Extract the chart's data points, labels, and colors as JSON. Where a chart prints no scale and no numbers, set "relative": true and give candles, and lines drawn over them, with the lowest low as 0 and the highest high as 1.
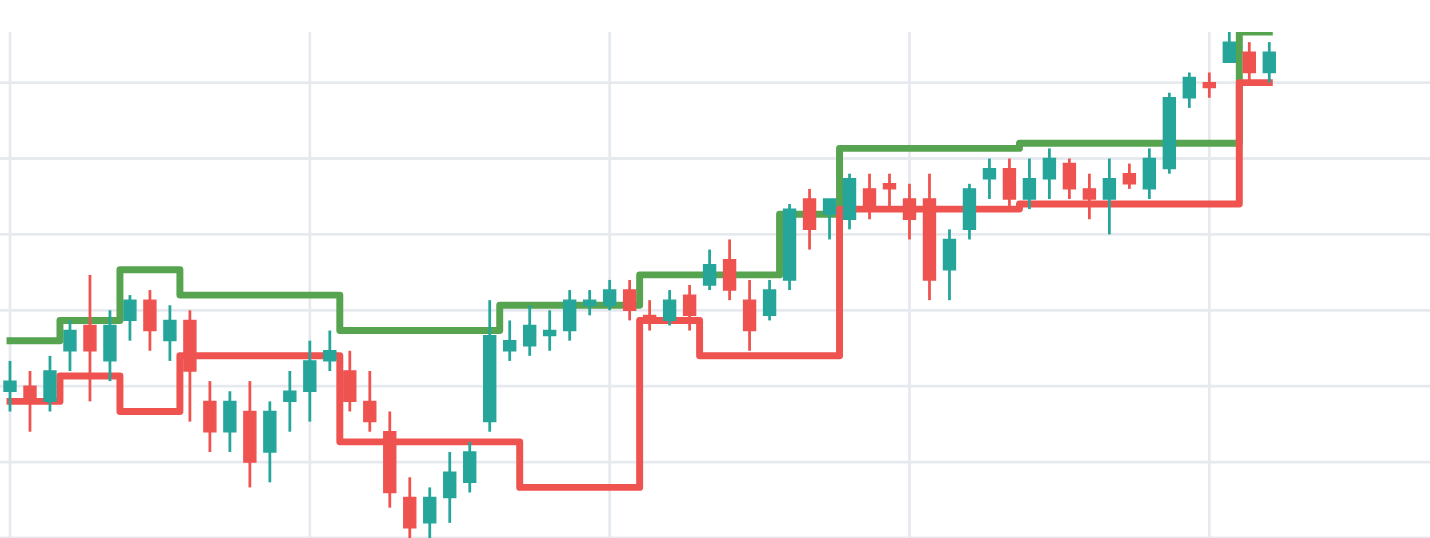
{
  "chart_data": {
    "type": "candlestick",
    "relative": true,
    "grid": true,
    "tick_labels": false,
    "categories": [
      null,
      null,
      null,
      null,
      null,
      null,
      null,
      null,
      null,
      null,
      null,
      null,
      null,
      null,
      null,
      null,
      null,
      null,
      null,
      null,
      null,
      null,
      null,
      null,
      null,
      null,
      null,
      null,
      null,
      null,
      null,
      null,
      null,
      null,
      null,
      null,
      null,
      null,
      null,
      null,
      null,
      null,
      null,
      null,
      null,
      null,
      null,
      null,
      null,
      null,
      null,
      null,
      null,
      null,
      null,
      null,
      null,
      null,
      null,
      null,
      null,
      null,
      null,
      null
    ],
    "ohlc": [
      [
        0.29,
        0.35,
        0.25,
        0.31
      ],
      [
        0.3,
        0.33,
        0.21,
        0.27
      ],
      [
        0.27,
        0.36,
        0.25,
        0.33
      ],
      [
        0.37,
        0.43,
        0.33,
        0.41
      ],
      [
        0.42,
        0.52,
        0.27,
        0.37
      ],
      [
        0.35,
        0.45,
        0.31,
        0.42
      ],
      [
        0.43,
        0.48,
        0.39,
        0.47
      ],
      [
        0.47,
        0.49,
        0.37,
        0.41
      ],
      [
        0.39,
        0.46,
        0.35,
        0.43
      ],
      [
        0.43,
        0.45,
        0.23,
        0.33
      ],
      [
        0.27,
        0.31,
        0.17,
        0.21
      ],
      [
        0.21,
        0.29,
        0.17,
        0.27
      ],
      [
        0.25,
        0.31,
        0.1,
        0.15
      ],
      [
        0.17,
        0.27,
        0.11,
        0.25
      ],
      [
        0.27,
        0.33,
        0.21,
        0.29
      ],
      [
        0.29,
        0.39,
        0.23,
        0.35
      ],
      [
        0.35,
        0.41,
        0.33,
        0.37
      ],
      [
        0.33,
        0.37,
        0.25,
        0.27
      ],
      [
        0.27,
        0.33,
        0.21,
        0.23
      ],
      [
        0.21,
        0.25,
        0.06,
        0.09
      ],
      [
        0.08,
        0.12,
        0.0,
        0.02
      ],
      [
        0.03,
        0.1,
        0.0,
        0.08
      ],
      [
        0.08,
        0.17,
        0.03,
        0.13
      ],
      [
        0.11,
        0.19,
        0.09,
        0.17
      ],
      [
        0.23,
        0.47,
        0.21,
        0.4
      ],
      [
        0.37,
        0.43,
        0.35,
        0.39
      ],
      [
        0.38,
        0.46,
        0.36,
        0.42
      ],
      [
        0.4,
        0.45,
        0.37,
        0.41
      ],
      [
        0.41,
        0.49,
        0.39,
        0.47
      ],
      [
        0.46,
        0.49,
        0.44,
        0.47
      ],
      [
        0.46,
        0.51,
        0.45,
        0.49
      ],
      [
        0.49,
        0.51,
        0.43,
        0.45
      ],
      [
        0.44,
        0.47,
        0.41,
        0.43
      ],
      [
        0.43,
        0.49,
        0.42,
        0.47
      ],
      [
        0.48,
        0.5,
        0.41,
        0.44
      ],
      [
        0.5,
        0.57,
        0.49,
        0.54
      ],
      [
        0.55,
        0.59,
        0.47,
        0.49
      ],
      [
        0.47,
        0.51,
        0.37,
        0.41
      ],
      [
        0.44,
        0.51,
        0.43,
        0.49
      ],
      [
        0.51,
        0.66,
        0.49,
        0.65
      ],
      [
        0.67,
        0.69,
        0.57,
        0.61
      ],
      [
        0.64,
        0.67,
        0.59,
        0.67
      ],
      [
        0.63,
        0.72,
        0.61,
        0.71
      ],
      [
        0.69,
        0.72,
        0.63,
        0.65
      ],
      [
        0.7,
        0.72,
        0.65,
        0.69
      ],
      [
        0.67,
        0.7,
        0.59,
        0.63
      ],
      [
        0.67,
        0.72,
        0.47,
        0.51
      ],
      [
        0.53,
        0.61,
        0.47,
        0.59
      ],
      [
        0.61,
        0.7,
        0.59,
        0.69
      ],
      [
        0.71,
        0.75,
        0.67,
        0.73
      ],
      [
        0.73,
        0.75,
        0.65,
        0.67
      ],
      [
        0.67,
        0.75,
        0.65,
        0.71
      ],
      [
        0.71,
        0.77,
        0.67,
        0.75
      ],
      [
        0.74,
        0.75,
        0.67,
        0.69
      ],
      [
        0.69,
        0.72,
        0.63,
        0.67
      ],
      [
        0.67,
        0.75,
        0.6,
        0.71
      ],
      [
        0.72,
        0.74,
        0.69,
        0.7
      ],
      [
        0.69,
        0.77,
        0.67,
        0.75
      ],
      [
        0.73,
        0.88,
        0.72,
        0.87
      ],
      [
        0.87,
        0.92,
        0.85,
        0.91
      ],
      [
        0.9,
        0.92,
        0.87,
        0.89
      ],
      [
        0.94,
        1.0,
        0.94,
        0.98
      ],
      [
        0.96,
        0.98,
        0.9,
        0.92
      ],
      [
        0.92,
        0.98,
        0.9,
        0.96
      ]
    ],
    "colors": [
      "#26a69a",
      "#ef5350",
      "#26a69a",
      "#26a69a",
      "#ef5350",
      "#26a69a",
      "#26a69a",
      "#ef5350",
      "#26a69a",
      "#ef5350",
      "#ef5350",
      "#26a69a",
      "#ef5350",
      "#26a69a",
      "#26a69a",
      "#26a69a",
      "#26a69a",
      "#ef5350",
      "#ef5350",
      "#ef5350",
      "#ef5350",
      "#26a69a",
      "#26a69a",
      "#26a69a",
      "#26a69a",
      "#26a69a",
      "#26a69a",
      "#26a69a",
      "#26a69a",
      "#26a69a",
      "#26a69a",
      "#ef5350",
      "#ef5350",
      "#26a69a",
      "#ef5350",
      "#26a69a",
      "#ef5350",
      "#ef5350",
      "#26a69a",
      "#26a69a",
      "#ef5350",
      "#26a69a",
      "#26a69a",
      "#ef5350",
      "#ef5350",
      "#ef5350",
      "#ef5350",
      "#26a69a",
      "#26a69a",
      "#26a69a",
      "#ef5350",
      "#26a69a",
      "#26a69a",
      "#ef5350",
      "#ef5350",
      "#26a69a",
      "#ef5350",
      "#26a69a",
      "#26a69a",
      "#26a69a",
      "#ef5350",
      "#26a69a",
      "#ef5350",
      "#26a69a"
    ],
    "series": [
      {
        "type": "step",
        "color": "#56a350",
        "values": [
          0.39,
          0.39,
          0.39,
          0.43,
          0.43,
          0.43,
          0.53,
          0.53,
          0.53,
          0.48,
          0.48,
          0.48,
          0.48,
          0.48,
          0.48,
          0.48,
          0.48,
          0.41,
          0.41,
          0.41,
          0.41,
          0.41,
          0.41,
          0.41,
          0.41,
          0.46,
          0.46,
          0.46,
          0.46,
          0.46,
          0.46,
          0.46,
          0.52,
          0.52,
          0.52,
          0.52,
          0.52,
          0.52,
          0.52,
          0.64,
          0.64,
          0.64,
          0.77,
          0.77,
          0.77,
          0.77,
          0.77,
          0.77,
          0.77,
          0.77,
          0.77,
          0.78,
          0.78,
          0.78,
          0.78,
          0.78,
          0.78,
          0.78,
          0.78,
          0.78,
          0.78,
          0.78,
          1.0,
          1.0
        ]
      },
      {
        "type": "step",
        "color": "#ef5350",
        "values": [
          0.27,
          0.27,
          0.27,
          0.32,
          0.32,
          0.32,
          0.25,
          0.25,
          0.25,
          0.36,
          0.36,
          0.36,
          0.36,
          0.36,
          0.36,
          0.36,
          0.36,
          0.19,
          0.19,
          0.19,
          0.19,
          0.19,
          0.19,
          0.19,
          0.19,
          0.19,
          0.1,
          0.1,
          0.1,
          0.1,
          0.1,
          0.1,
          0.43,
          0.43,
          0.43,
          0.36,
          0.36,
          0.36,
          0.36,
          0.36,
          0.36,
          0.36,
          0.65,
          0.65,
          0.65,
          0.65,
          0.65,
          0.65,
          0.65,
          0.65,
          0.65,
          0.66,
          0.66,
          0.66,
          0.66,
          0.66,
          0.66,
          0.66,
          0.66,
          0.66,
          0.66,
          0.66,
          0.9,
          0.9
        ]
      }
    ]
  }
}
